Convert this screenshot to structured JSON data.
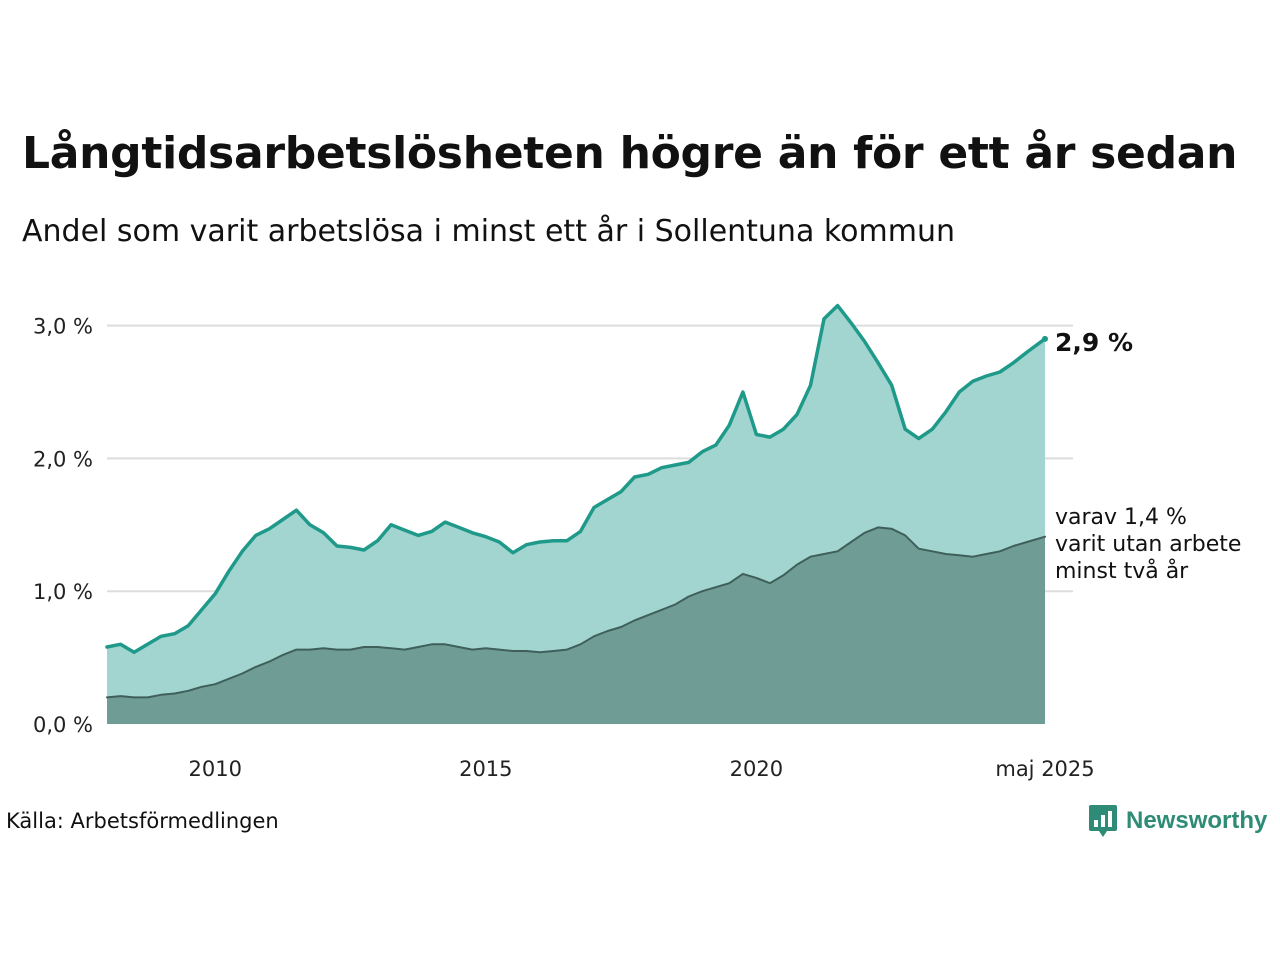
{
  "header": {
    "title": "Långtidsarbetslösheten högre än för ett år sedan",
    "subtitle": "Andel som varit arbetslösa i minst ett år i Sollentuna kommun"
  },
  "footer": {
    "source": "Källa: Arbetsförmedlingen",
    "brand": "Newsworthy"
  },
  "colors": {
    "total_line": "#1f9a8a",
    "total_fill": "#a2d5cf",
    "longterm_line": "#3f605a",
    "longterm_fill": "#709c96",
    "gridline": "#dddddd",
    "brand": "#2e8b76"
  },
  "chart_data": {
    "type": "area",
    "x_start": "2008-01",
    "x_end": "2025-05",
    "ylim": [
      0,
      3.2
    ],
    "yticks": [
      {
        "value": 0,
        "label": "0,0 %"
      },
      {
        "value": 1,
        "label": "1,0 %"
      },
      {
        "value": 2,
        "label": "2,0 %"
      },
      {
        "value": 3,
        "label": "3,0 %"
      }
    ],
    "xticks": [
      {
        "date": "2010-01",
        "label": "2010"
      },
      {
        "date": "2015-01",
        "label": "2015"
      },
      {
        "date": "2020-01",
        "label": "2020"
      },
      {
        "date": "2025-05",
        "label": "maj 2025"
      }
    ],
    "grid": true,
    "series": [
      {
        "key": "total",
        "end_label": "2,9 %",
        "points": [
          [
            "2008-01",
            0.58
          ],
          [
            "2008-04",
            0.6
          ],
          [
            "2008-07",
            0.54
          ],
          [
            "2008-10",
            0.6
          ],
          [
            "2009-01",
            0.66
          ],
          [
            "2009-04",
            0.68
          ],
          [
            "2009-07",
            0.74
          ],
          [
            "2009-10",
            0.86
          ],
          [
            "2010-01",
            0.98
          ],
          [
            "2010-04",
            1.15
          ],
          [
            "2010-07",
            1.3
          ],
          [
            "2010-10",
            1.42
          ],
          [
            "2011-01",
            1.47
          ],
          [
            "2011-04",
            1.54
          ],
          [
            "2011-07",
            1.61
          ],
          [
            "2011-10",
            1.5
          ],
          [
            "2012-01",
            1.44
          ],
          [
            "2012-04",
            1.34
          ],
          [
            "2012-07",
            1.33
          ],
          [
            "2012-10",
            1.31
          ],
          [
            "2013-01",
            1.38
          ],
          [
            "2013-04",
            1.5
          ],
          [
            "2013-07",
            1.46
          ],
          [
            "2013-10",
            1.42
          ],
          [
            "2014-01",
            1.45
          ],
          [
            "2014-04",
            1.52
          ],
          [
            "2014-07",
            1.48
          ],
          [
            "2014-10",
            1.44
          ],
          [
            "2015-01",
            1.41
          ],
          [
            "2015-04",
            1.37
          ],
          [
            "2015-07",
            1.29
          ],
          [
            "2015-10",
            1.35
          ],
          [
            "2016-01",
            1.37
          ],
          [
            "2016-04",
            1.38
          ],
          [
            "2016-07",
            1.38
          ],
          [
            "2016-10",
            1.45
          ],
          [
            "2017-01",
            1.63
          ],
          [
            "2017-04",
            1.69
          ],
          [
            "2017-07",
            1.75
          ],
          [
            "2017-10",
            1.86
          ],
          [
            "2018-01",
            1.88
          ],
          [
            "2018-04",
            1.93
          ],
          [
            "2018-07",
            1.95
          ],
          [
            "2018-10",
            1.97
          ],
          [
            "2019-01",
            2.05
          ],
          [
            "2019-04",
            2.1
          ],
          [
            "2019-07",
            2.25
          ],
          [
            "2019-10",
            2.5
          ],
          [
            "2020-01",
            2.18
          ],
          [
            "2020-04",
            2.16
          ],
          [
            "2020-07",
            2.22
          ],
          [
            "2020-10",
            2.33
          ],
          [
            "2021-01",
            2.55
          ],
          [
            "2021-04",
            3.05
          ],
          [
            "2021-07",
            3.15
          ],
          [
            "2021-10",
            3.02
          ],
          [
            "2022-01",
            2.88
          ],
          [
            "2022-04",
            2.72
          ],
          [
            "2022-07",
            2.55
          ],
          [
            "2022-10",
            2.22
          ],
          [
            "2023-01",
            2.15
          ],
          [
            "2023-04",
            2.22
          ],
          [
            "2023-07",
            2.35
          ],
          [
            "2023-10",
            2.5
          ],
          [
            "2024-01",
            2.58
          ],
          [
            "2024-04",
            2.62
          ],
          [
            "2024-07",
            2.65
          ],
          [
            "2024-10",
            2.72
          ],
          [
            "2025-01",
            2.8
          ],
          [
            "2025-05",
            2.9
          ]
        ]
      },
      {
        "key": "longterm",
        "end_label": [
          "varav 1,4 %",
          "varit utan arbete",
          "minst två år"
        ],
        "points": [
          [
            "2008-01",
            0.2
          ],
          [
            "2008-04",
            0.21
          ],
          [
            "2008-07",
            0.2
          ],
          [
            "2008-10",
            0.2
          ],
          [
            "2009-01",
            0.22
          ],
          [
            "2009-04",
            0.23
          ],
          [
            "2009-07",
            0.25
          ],
          [
            "2009-10",
            0.28
          ],
          [
            "2010-01",
            0.3
          ],
          [
            "2010-04",
            0.34
          ],
          [
            "2010-07",
            0.38
          ],
          [
            "2010-10",
            0.43
          ],
          [
            "2011-01",
            0.47
          ],
          [
            "2011-04",
            0.52
          ],
          [
            "2011-07",
            0.56
          ],
          [
            "2011-10",
            0.56
          ],
          [
            "2012-01",
            0.57
          ],
          [
            "2012-04",
            0.56
          ],
          [
            "2012-07",
            0.56
          ],
          [
            "2012-10",
            0.58
          ],
          [
            "2013-01",
            0.58
          ],
          [
            "2013-04",
            0.57
          ],
          [
            "2013-07",
            0.56
          ],
          [
            "2013-10",
            0.58
          ],
          [
            "2014-01",
            0.6
          ],
          [
            "2014-04",
            0.6
          ],
          [
            "2014-07",
            0.58
          ],
          [
            "2014-10",
            0.56
          ],
          [
            "2015-01",
            0.57
          ],
          [
            "2015-04",
            0.56
          ],
          [
            "2015-07",
            0.55
          ],
          [
            "2015-10",
            0.55
          ],
          [
            "2016-01",
            0.54
          ],
          [
            "2016-04",
            0.55
          ],
          [
            "2016-07",
            0.56
          ],
          [
            "2016-10",
            0.6
          ],
          [
            "2017-01",
            0.66
          ],
          [
            "2017-04",
            0.7
          ],
          [
            "2017-07",
            0.73
          ],
          [
            "2017-10",
            0.78
          ],
          [
            "2018-01",
            0.82
          ],
          [
            "2018-04",
            0.86
          ],
          [
            "2018-07",
            0.9
          ],
          [
            "2018-10",
            0.96
          ],
          [
            "2019-01",
            1.0
          ],
          [
            "2019-04",
            1.03
          ],
          [
            "2019-07",
            1.06
          ],
          [
            "2019-10",
            1.13
          ],
          [
            "2020-01",
            1.1
          ],
          [
            "2020-04",
            1.06
          ],
          [
            "2020-07",
            1.12
          ],
          [
            "2020-10",
            1.2
          ],
          [
            "2021-01",
            1.26
          ],
          [
            "2021-04",
            1.28
          ],
          [
            "2021-07",
            1.3
          ],
          [
            "2021-10",
            1.37
          ],
          [
            "2022-01",
            1.44
          ],
          [
            "2022-04",
            1.48
          ],
          [
            "2022-07",
            1.47
          ],
          [
            "2022-10",
            1.42
          ],
          [
            "2023-01",
            1.32
          ],
          [
            "2023-04",
            1.3
          ],
          [
            "2023-07",
            1.28
          ],
          [
            "2023-10",
            1.27
          ],
          [
            "2024-01",
            1.26
          ],
          [
            "2024-04",
            1.28
          ],
          [
            "2024-07",
            1.3
          ],
          [
            "2024-10",
            1.34
          ],
          [
            "2025-01",
            1.37
          ],
          [
            "2025-05",
            1.41
          ]
        ]
      }
    ]
  }
}
